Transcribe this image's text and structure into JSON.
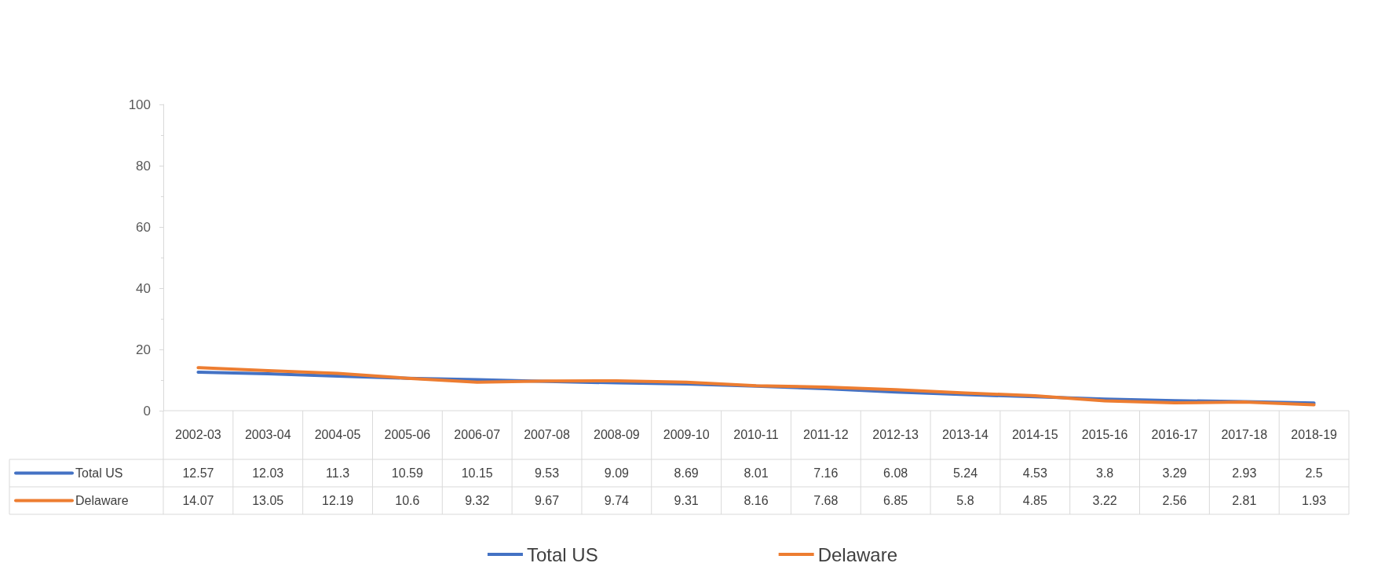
{
  "chart_data": {
    "type": "line",
    "categories": [
      "2002-03",
      "2003-04",
      "2004-05",
      "2005-06",
      "2006-07",
      "2007-08",
      "2008-09",
      "2009-10",
      "2010-11",
      "2011-12",
      "2012-13",
      "2013-14",
      "2014-15",
      "2015-16",
      "2016-17",
      "2017-18",
      "2018-19"
    ],
    "series": [
      {
        "name": "Total US",
        "color": "#4472c4",
        "values": [
          12.57,
          12.03,
          11.3,
          10.59,
          10.15,
          9.53,
          9.09,
          8.69,
          8.01,
          7.16,
          6.08,
          5.24,
          4.53,
          3.8,
          3.29,
          2.93,
          2.5
        ]
      },
      {
        "name": "Delaware",
        "color": "#ed7d31",
        "values": [
          14.07,
          13.05,
          12.19,
          10.6,
          9.32,
          9.67,
          9.74,
          9.31,
          8.16,
          7.68,
          6.85,
          5.8,
          4.85,
          3.22,
          2.56,
          2.81,
          1.93
        ]
      }
    ],
    "ylim": [
      0,
      100
    ],
    "yticks": [
      0,
      20,
      40,
      60,
      80,
      100
    ],
    "grid": false,
    "legend": "bottom",
    "marker": "none",
    "line_style": "solid",
    "data_labels": true
  }
}
